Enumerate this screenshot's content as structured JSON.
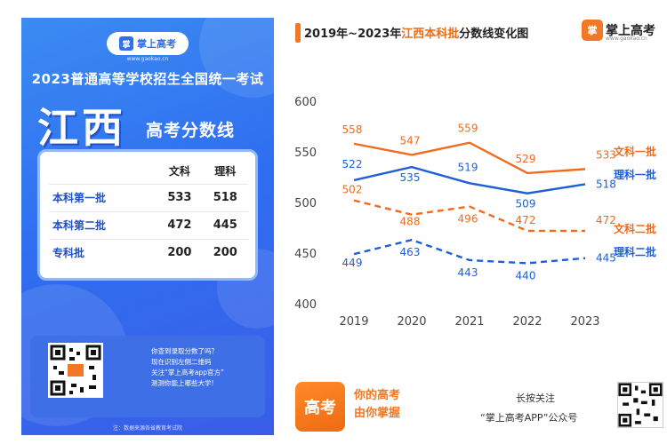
{
  "poster": {
    "logo_text": "掌上高考",
    "logo_url": "www.gaokao.cn",
    "exam_title": "2023普通高等学校招生全国统一考试",
    "province": "江西",
    "subtitle": "高考分数线",
    "table": {
      "headers": [
        "",
        "文科",
        "理科"
      ],
      "rows": [
        {
          "label": "本科第一批",
          "wenke": "533",
          "like": "518"
        },
        {
          "label": "本科第二批",
          "wenke": "472",
          "like": "445"
        },
        {
          "label": "专科批",
          "wenke": "200",
          "like": "200"
        }
      ]
    },
    "qr_text": [
      "你查到录取分数了吗？",
      "现在识别左侧二维码",
      "关注“掌上高考app官方”",
      "测测你能上哪些大学!"
    ],
    "footer": "注：数据来源各省教育考试院"
  },
  "chart_header": {
    "title_prefix": "2019年~2023年",
    "title_highlight": "江西本科批",
    "title_suffix": "分数线变化图",
    "brand": "掌上高考",
    "brand_mark": "掌",
    "brand_url": "www.gaokao.cn"
  },
  "chart_data": {
    "type": "line",
    "x": [
      "2019",
      "2020",
      "2021",
      "2022",
      "2023"
    ],
    "ylim": [
      400,
      600
    ],
    "yticks": [
      400,
      450,
      500,
      550,
      600
    ],
    "grid": false,
    "legend_position": "right",
    "series": [
      {
        "name": "文科一批",
        "values": [
          558,
          547,
          559,
          529,
          533
        ],
        "color": "#ef6b1e",
        "dashed": false
      },
      {
        "name": "理科一批",
        "values": [
          522,
          535,
          519,
          509,
          518
        ],
        "color": "#1f5fd6",
        "dashed": false
      },
      {
        "name": "文科二批",
        "values": [
          502,
          488,
          496,
          472,
          472
        ],
        "color": "#ef6b1e",
        "dashed": true
      },
      {
        "name": "理科二批",
        "values": [
          449,
          463,
          443,
          440,
          445
        ],
        "color": "#1f5fd6",
        "dashed": true
      }
    ]
  },
  "footer": {
    "logo_text": "高考",
    "slogan_1": "你的高考",
    "slogan_2": "由你掌握",
    "follow_1": "长按关注",
    "follow_2": "“掌上高考APP”公众号"
  }
}
